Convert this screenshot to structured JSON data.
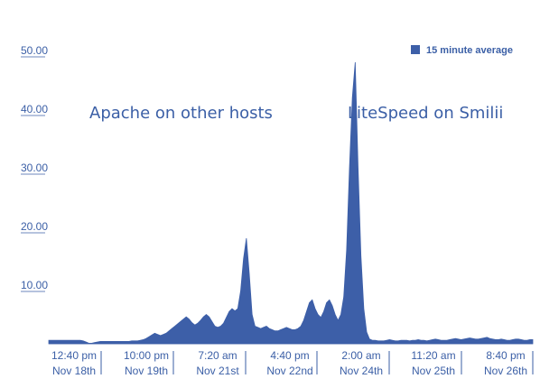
{
  "chart_data": {
    "type": "area",
    "title": "",
    "xlabel": "",
    "ylabel": "",
    "ylim": [
      0,
      50
    ],
    "grid": false,
    "legend_position": "top-right",
    "series_color": "#3d5fa8",
    "text_color": "#3b5fa6",
    "yticks": [
      "50.00",
      "40.00",
      "30.00",
      "20.00",
      "10.00"
    ],
    "ytick_values": [
      50,
      40,
      30,
      20,
      10
    ],
    "xticks": [
      {
        "time": "12:40 pm",
        "date": "Nov 18th"
      },
      {
        "time": "10:00 pm",
        "date": "Nov 19th"
      },
      {
        "time": "7:20 am",
        "date": "Nov 21st"
      },
      {
        "time": "4:40 pm",
        "date": "Nov 22nd"
      },
      {
        "time": "2:00 am",
        "date": "Nov 24th"
      },
      {
        "time": "11:20 am",
        "date": "Nov 25th"
      },
      {
        "time": "8:40 pm",
        "date": "Nov 26th"
      }
    ],
    "legend": [
      "15 minute average"
    ],
    "annotations": [
      "Apache on other hosts",
      "LiteSpeed on Smilii"
    ],
    "series": [
      {
        "name": "15 minute average",
        "values": [
          0.6,
          0.6,
          0.6,
          0.6,
          0.6,
          0.6,
          0.6,
          0.6,
          0.6,
          0.6,
          0.6,
          0.6,
          0.5,
          0.3,
          0.1,
          0.1,
          0.2,
          0.3,
          0.4,
          0.4,
          0.4,
          0.4,
          0.4,
          0.4,
          0.4,
          0.4,
          0.4,
          0.4,
          0.4,
          0.5,
          0.5,
          0.5,
          0.6,
          0.7,
          0.9,
          1.2,
          1.5,
          1.8,
          1.6,
          1.4,
          1.6,
          1.8,
          2.2,
          2.6,
          3.0,
          3.4,
          3.8,
          4.2,
          4.6,
          4.2,
          3.6,
          3.2,
          3.5,
          4.0,
          4.6,
          5.0,
          4.6,
          3.8,
          3.0,
          2.8,
          3.0,
          3.5,
          4.5,
          5.5,
          6.0,
          5.6,
          6.0,
          9.0,
          14.5,
          18.0,
          12.0,
          5.0,
          3.0,
          2.8,
          2.6,
          2.8,
          3.0,
          2.6,
          2.4,
          2.2,
          2.2,
          2.4,
          2.6,
          2.8,
          2.6,
          2.4,
          2.4,
          2.6,
          3.0,
          4.0,
          5.5,
          7.0,
          7.5,
          6.0,
          5.0,
          4.5,
          5.5,
          7.0,
          7.5,
          6.5,
          5.0,
          4.0,
          5.0,
          8.0,
          16.0,
          30.0,
          42.0,
          48.0,
          30.0,
          15.0,
          6.0,
          2.0,
          0.8,
          0.6,
          0.6,
          0.5,
          0.5,
          0.5,
          0.6,
          0.7,
          0.6,
          0.5,
          0.5,
          0.6,
          0.6,
          0.6,
          0.5,
          0.6,
          0.6,
          0.7,
          0.6,
          0.6,
          0.5,
          0.6,
          0.7,
          0.8,
          0.7,
          0.6,
          0.6,
          0.6,
          0.7,
          0.8,
          0.9,
          0.8,
          0.7,
          0.8,
          0.9,
          1.0,
          0.9,
          0.8,
          0.8,
          0.9,
          1.0,
          1.1,
          0.9,
          0.8,
          0.7,
          0.7,
          0.8,
          0.7,
          0.6,
          0.6,
          0.7,
          0.8,
          0.8,
          0.7,
          0.6,
          0.6,
          0.7,
          0.7
        ]
      }
    ]
  }
}
